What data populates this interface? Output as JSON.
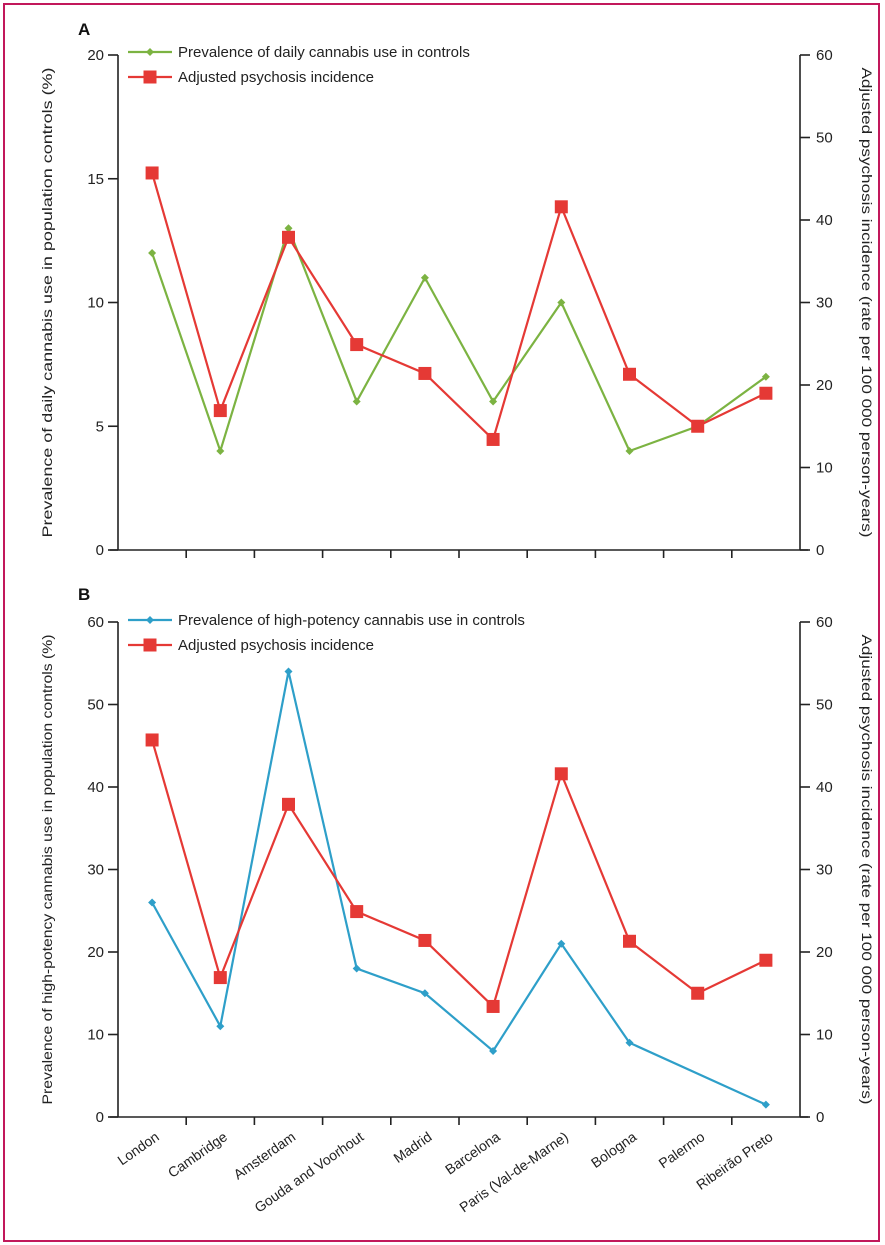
{
  "chart_data": [
    {
      "panel": "A",
      "type": "line",
      "categories": [
        "London",
        "Cambridge",
        "Amsterdam",
        "Gouda and Voorhout",
        "Madrid",
        "Barcelona",
        "Paris (Val-de-Marne)",
        "Bologna",
        "Palermo",
        "Ribeirão Preto"
      ],
      "ylabel": "Prevalence of daily cannabis use in population controls (%)",
      "ylim": [
        0,
        20
      ],
      "yticks": [
        0,
        5,
        10,
        15,
        20
      ],
      "y2label": "Adjusted psychosis incidence (rate per 100 000 person-years)",
      "y2lim": [
        0,
        60
      ],
      "y2ticks": [
        0,
        10,
        20,
        30,
        40,
        50,
        60
      ],
      "legend_position": "top-left",
      "series": [
        {
          "name": "Prevalence of daily cannabis use in controls",
          "axis": "left",
          "color": "#7cb342",
          "marker": "diamond",
          "values": [
            12,
            4,
            13,
            6,
            11,
            6,
            10,
            4,
            5,
            7
          ]
        },
        {
          "name": "Adjusted psychosis incidence",
          "axis": "right",
          "color": "#e53935",
          "marker": "square",
          "values": [
            45.7,
            16.9,
            37.9,
            24.9,
            21.4,
            13.4,
            41.6,
            21.3,
            15.0,
            19.0
          ]
        }
      ]
    },
    {
      "panel": "B",
      "type": "line",
      "categories": [
        "London",
        "Cambridge",
        "Amsterdam",
        "Gouda and Voorhout",
        "Madrid",
        "Barcelona",
        "Paris (Val-de-Marne)",
        "Bologna",
        "Palermo",
        "Ribeirão Preto"
      ],
      "ylabel": "Prevalence of high-potency cannabis use in population controls (%)",
      "ylim": [
        0,
        60
      ],
      "yticks": [
        0,
        10,
        20,
        30,
        40,
        50,
        60
      ],
      "y2label": "Adjusted psychosis incidence (rate per 100 000 person-years)",
      "y2lim": [
        0,
        60
      ],
      "y2ticks": [
        0,
        10,
        20,
        30,
        40,
        50,
        60
      ],
      "legend_position": "top-left",
      "series": [
        {
          "name": "Prevalence of high-potency cannabis use in controls",
          "axis": "left",
          "color": "#2e9fc9",
          "marker": "diamond",
          "values": [
            26,
            11,
            54,
            18,
            15,
            8,
            21,
            9,
            null,
            1.5
          ]
        },
        {
          "name": "Adjusted psychosis incidence",
          "axis": "right",
          "color": "#e53935",
          "marker": "square",
          "values": [
            45.7,
            16.9,
            37.9,
            24.9,
            21.4,
            13.4,
            41.6,
            21.3,
            15.0,
            19.0
          ]
        }
      ]
    }
  ],
  "axis_color": "#222222"
}
